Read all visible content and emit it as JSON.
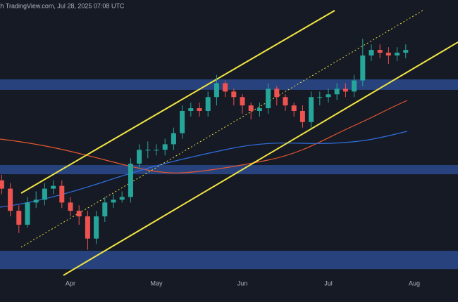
{
  "chart_data": {
    "type": "candlestick",
    "header": "th TradingView.com, Jul 28, 2025 07:08 UTC",
    "categories": [
      null,
      null,
      null,
      null,
      null,
      null,
      null,
      null,
      "Apr",
      null,
      null,
      null,
      null,
      null,
      null,
      null,
      null,
      null,
      "May",
      null,
      null,
      null,
      null,
      null,
      null,
      null,
      null,
      null,
      "Jun",
      null,
      null,
      null,
      null,
      null,
      null,
      null,
      null,
      null,
      "Jul",
      null,
      null,
      null,
      null,
      null,
      null,
      null,
      null,
      null,
      "Aug"
    ],
    "open": [
      35,
      32,
      24,
      19,
      27,
      28,
      32,
      33,
      27,
      24,
      22,
      14,
      22,
      27,
      28,
      29,
      41,
      46,
      46,
      46,
      48,
      52,
      60,
      61,
      60,
      65,
      70,
      67,
      65,
      62,
      60,
      61,
      68,
      65,
      62,
      60,
      56,
      65,
      65,
      66,
      68,
      67,
      71,
      80,
      82,
      81,
      80,
      81,
      null
    ],
    "high": [
      37,
      34,
      26,
      29,
      31,
      34,
      35,
      35,
      29,
      26,
      24,
      24,
      29,
      30,
      31,
      43,
      48,
      49,
      48,
      50,
      54,
      62,
      63,
      63,
      67,
      73,
      71,
      68,
      66,
      63,
      63,
      70,
      69,
      66,
      63,
      62,
      67,
      67,
      68,
      70,
      70,
      73,
      86,
      84,
      84,
      83,
      83,
      84,
      null
    ],
    "low": [
      30,
      22,
      16,
      18,
      25,
      26,
      30,
      25,
      22,
      19,
      10,
      12,
      20,
      25,
      27,
      27,
      39,
      43,
      44,
      44,
      46,
      50,
      58,
      58,
      58,
      62,
      65,
      62,
      59,
      57,
      58,
      59,
      62,
      60,
      58,
      54,
      54,
      62,
      63,
      64,
      65,
      65,
      69,
      78,
      79,
      77,
      78,
      79,
      null
    ],
    "close": [
      32,
      24,
      19,
      27,
      28,
      32,
      33,
      27,
      24,
      22,
      14,
      22,
      27,
      28,
      29,
      41,
      46,
      46,
      46,
      48,
      52,
      60,
      61,
      60,
      65,
      70,
      67,
      65,
      62,
      60,
      61,
      68,
      65,
      62,
      60,
      56,
      65,
      65,
      66,
      68,
      67,
      71,
      80,
      82,
      81,
      80,
      81,
      82,
      null
    ],
    "up_color": "#26a69a",
    "down_color": "#ef5350",
    "zones": [
      [
        67.6,
        71.4
      ],
      [
        37.2,
        40.5
      ],
      [
        3.0,
        9.6
      ]
    ],
    "zone_color": "#2a4a8c",
    "ylim": [
      0,
      100
    ]
  }
}
